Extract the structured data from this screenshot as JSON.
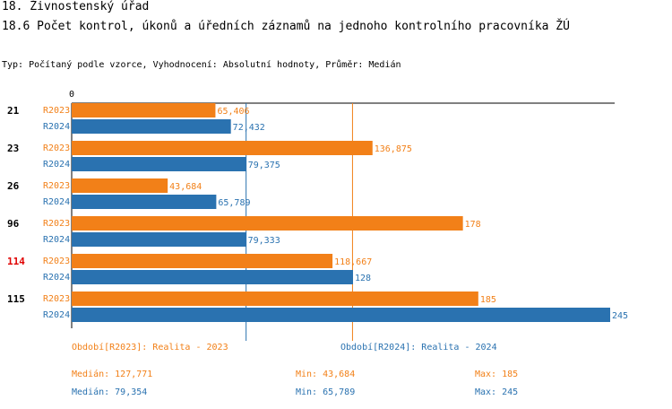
{
  "header": {
    "title1": "18. Živnostenský úřad",
    "title2": "18.6 Počet kontrol, úkonů a úředních záznamů na jednoho kontrolního pracovníka ŽÚ",
    "subtitle": "Typ: Počítaný podle vzorce, Vyhodnocení: Absolutní hodnoty, Průměr: Medián"
  },
  "chart_data": {
    "type": "bar",
    "orientation": "horizontal",
    "axis_origin_label": "0",
    "xlim": [
      0,
      245
    ],
    "categories": [
      "21",
      "23",
      "26",
      "96",
      "114",
      "115"
    ],
    "highlighted_category": "114",
    "series": [
      {
        "name": "R2023",
        "color": "#f28018",
        "values": [
          65.406,
          136.875,
          43.684,
          178,
          118.667,
          185
        ],
        "labels": [
          "65,406",
          "136,875",
          "43,684",
          "178",
          "118,667",
          "185"
        ]
      },
      {
        "name": "R2024",
        "color": "#2a72b0",
        "values": [
          72.432,
          79.375,
          65.789,
          79.333,
          128,
          245
        ],
        "labels": [
          "72,432",
          "79,375",
          "65,789",
          "79,333",
          "128",
          "245"
        ]
      }
    ],
    "reference_lines": [
      {
        "series": "R2023",
        "statistic": "median",
        "value": 127.771
      },
      {
        "series": "R2024",
        "statistic": "median",
        "value": 79.354
      }
    ]
  },
  "legend": {
    "r2023_title": "Období[R2023]: Realita - 2023",
    "r2024_title": "Období[R2024]: Realita - 2024",
    "r2023_median": "Medián: 127,771",
    "r2023_min": "Min: 43,684",
    "r2023_max": "Max: 185",
    "r2024_median": "Medián: 79,354",
    "r2024_min": "Min: 65,789",
    "r2024_max": "Max: 245"
  },
  "colors": {
    "r2023": "#f28018",
    "r2024": "#2a72b0",
    "highlight": "#e00000"
  }
}
